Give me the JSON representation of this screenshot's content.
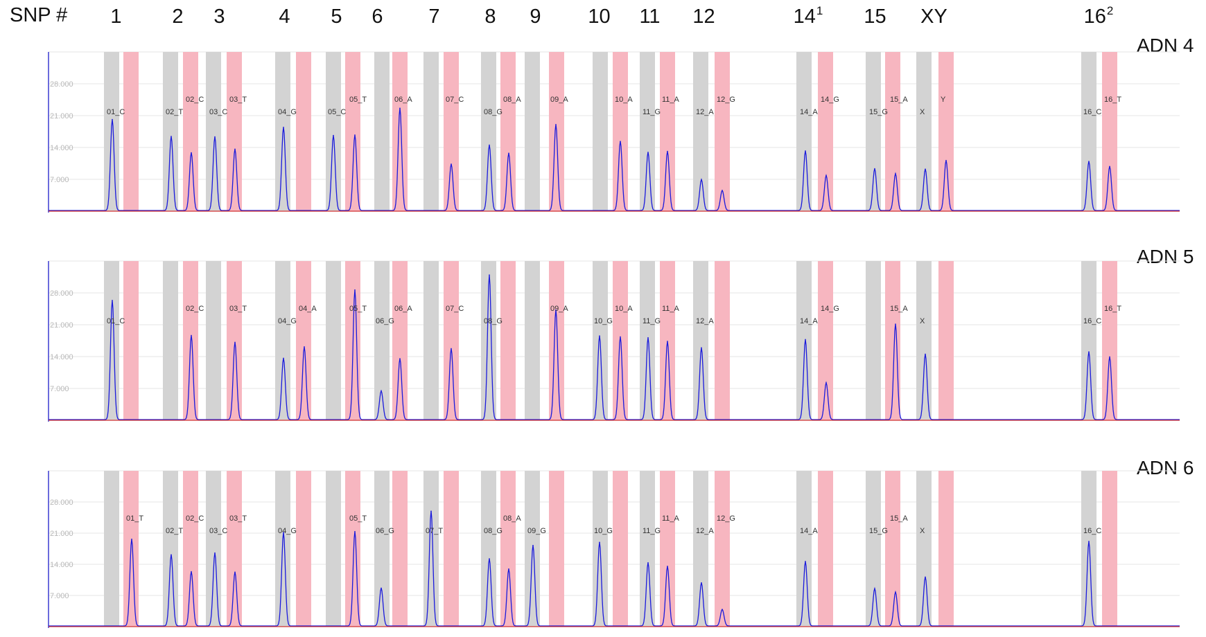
{
  "header": {
    "title": "SNP #",
    "snps": [
      {
        "label": "1",
        "sup": ""
      },
      {
        "label": "2",
        "sup": ""
      },
      {
        "label": "3",
        "sup": ""
      },
      {
        "label": "4",
        "sup": ""
      },
      {
        "label": "5",
        "sup": ""
      },
      {
        "label": "6",
        "sup": ""
      },
      {
        "label": "7",
        "sup": ""
      },
      {
        "label": "8",
        "sup": ""
      },
      {
        "label": "9",
        "sup": ""
      },
      {
        "label": "10",
        "sup": ""
      },
      {
        "label": "11",
        "sup": ""
      },
      {
        "label": "12",
        "sup": ""
      },
      {
        "label": "14",
        "sup": "1"
      },
      {
        "label": "15",
        "sup": ""
      },
      {
        "label": "XY",
        "sup": ""
      },
      {
        "label": "16",
        "sup": "2"
      }
    ]
  },
  "colors": {
    "allele1_bin": "#d3d3d3",
    "allele2_bin": "#f7b6c0",
    "trace": "#1a1adc",
    "baseline": "#d03030",
    "grid": "#e6e6e6",
    "axis": "#3a3ad0"
  },
  "chart_data": [
    {
      "type": "line",
      "title": "ADN 4",
      "y_ticks": [
        "7.000",
        "14.000",
        "21.000",
        "28.000"
      ],
      "ylim": [
        0,
        35000
      ],
      "peaks": [
        {
          "snp": "1",
          "label": "01_C",
          "allele": 1,
          "height": 20000
        },
        {
          "snp": "2",
          "label": "02_T",
          "allele": 1,
          "height": 16300
        },
        {
          "snp": "2",
          "label": "02_C",
          "allele": 2,
          "height": 12700
        },
        {
          "snp": "3",
          "label": "03_C",
          "allele": 1,
          "height": 16200
        },
        {
          "snp": "3",
          "label": "03_T",
          "allele": 2,
          "height": 13500
        },
        {
          "snp": "4",
          "label": "04_G",
          "allele": 1,
          "height": 18300
        },
        {
          "snp": "5",
          "label": "05_C",
          "allele": 1,
          "height": 16500
        },
        {
          "snp": "5",
          "label": "05_T",
          "allele": 2,
          "height": 16600
        },
        {
          "snp": "6",
          "label": "06_A",
          "allele": 2,
          "height": 22500
        },
        {
          "snp": "7",
          "label": "07_C",
          "allele": 2,
          "height": 10200
        },
        {
          "snp": "8",
          "label": "08_G",
          "allele": 1,
          "height": 14400
        },
        {
          "snp": "8",
          "label": "08_A",
          "allele": 2,
          "height": 12600
        },
        {
          "snp": "9",
          "label": "09_A",
          "allele": 2,
          "height": 18900
        },
        {
          "snp": "10",
          "label": "10_A",
          "allele": 2,
          "height": 15200
        },
        {
          "snp": "11",
          "label": "11_G",
          "allele": 1,
          "height": 12800
        },
        {
          "snp": "11",
          "label": "11_A",
          "allele": 2,
          "height": 13000
        },
        {
          "snp": "12",
          "label": "12_A",
          "allele": 1,
          "height": 6800
        },
        {
          "snp": "12",
          "label": "12_G",
          "allele": 2,
          "height": 4400
        },
        {
          "snp": "14",
          "label": "14_A",
          "allele": 1,
          "height": 13100
        },
        {
          "snp": "14",
          "label": "14_G",
          "allele": 2,
          "height": 7700
        },
        {
          "snp": "15",
          "label": "15_G",
          "allele": 1,
          "height": 9200
        },
        {
          "snp": "15",
          "label": "15_A",
          "allele": 2,
          "height": 8100
        },
        {
          "snp": "XY",
          "label": "X",
          "allele": 1,
          "height": 9100
        },
        {
          "snp": "XY",
          "label": "Y",
          "allele": 2,
          "height": 11000
        },
        {
          "snp": "16",
          "label": "16_C",
          "allele": 1,
          "height": 10800
        },
        {
          "snp": "16",
          "label": "16_T",
          "allele": 2,
          "height": 9700
        }
      ]
    },
    {
      "type": "line",
      "title": "ADN 5",
      "y_ticks": [
        "7.000",
        "14.000",
        "21.000",
        "28.000"
      ],
      "ylim": [
        0,
        35000
      ],
      "peaks": [
        {
          "snp": "1",
          "label": "01_C",
          "allele": 1,
          "height": 26200
        },
        {
          "snp": "2",
          "label": "02_C",
          "allele": 2,
          "height": 18500
        },
        {
          "snp": "3",
          "label": "03_T",
          "allele": 2,
          "height": 17000
        },
        {
          "snp": "4",
          "label": "04_G",
          "allele": 1,
          "height": 13500
        },
        {
          "snp": "4",
          "label": "04_A",
          "allele": 2,
          "height": 16000
        },
        {
          "snp": "5",
          "label": "05_T",
          "allele": 2,
          "height": 28500
        },
        {
          "snp": "6",
          "label": "06_G",
          "allele": 1,
          "height": 6300
        },
        {
          "snp": "6",
          "label": "06_A",
          "allele": 2,
          "height": 13400
        },
        {
          "snp": "7",
          "label": "07_C",
          "allele": 2,
          "height": 15600
        },
        {
          "snp": "8",
          "label": "08_G",
          "allele": 1,
          "height": 31800
        },
        {
          "snp": "9",
          "label": "09_A",
          "allele": 2,
          "height": 24100
        },
        {
          "snp": "10",
          "label": "10_G",
          "allele": 1,
          "height": 18400
        },
        {
          "snp": "10",
          "label": "10_A",
          "allele": 2,
          "height": 18200
        },
        {
          "snp": "11",
          "label": "11_G",
          "allele": 1,
          "height": 18000
        },
        {
          "snp": "11",
          "label": "11_A",
          "allele": 2,
          "height": 17200
        },
        {
          "snp": "12",
          "label": "12_A",
          "allele": 1,
          "height": 15800
        },
        {
          "snp": "14",
          "label": "14_A",
          "allele": 1,
          "height": 17600
        },
        {
          "snp": "14",
          "label": "14_G",
          "allele": 2,
          "height": 8100
        },
        {
          "snp": "15",
          "label": "15_A",
          "allele": 2,
          "height": 21000
        },
        {
          "snp": "XY",
          "label": "X",
          "allele": 1,
          "height": 14400
        },
        {
          "snp": "16",
          "label": "16_C",
          "allele": 1,
          "height": 14900
        },
        {
          "snp": "16",
          "label": "16_T",
          "allele": 2,
          "height": 13800
        }
      ]
    },
    {
      "type": "line",
      "title": "ADN 6",
      "y_ticks": [
        "7.000",
        "14.000",
        "21.000",
        "28.000"
      ],
      "ylim": [
        0,
        35000
      ],
      "peaks": [
        {
          "snp": "1",
          "label": "01_T",
          "allele": 2,
          "height": 19500
        },
        {
          "snp": "2",
          "label": "02_T",
          "allele": 1,
          "height": 16000
        },
        {
          "snp": "2",
          "label": "02_C",
          "allele": 2,
          "height": 12200
        },
        {
          "snp": "3",
          "label": "03_C",
          "allele": 1,
          "height": 16400
        },
        {
          "snp": "3",
          "label": "03_T",
          "allele": 2,
          "height": 12100
        },
        {
          "snp": "4",
          "label": "04_G",
          "allele": 1,
          "height": 21000
        },
        {
          "snp": "5",
          "label": "05_T",
          "allele": 2,
          "height": 21200
        },
        {
          "snp": "6",
          "label": "06_G",
          "allele": 1,
          "height": 8500
        },
        {
          "snp": "7",
          "label": "07_T",
          "allele": 1,
          "height": 25800
        },
        {
          "snp": "8",
          "label": "08_G",
          "allele": 1,
          "height": 15100
        },
        {
          "snp": "8",
          "label": "08_A",
          "allele": 2,
          "height": 12800
        },
        {
          "snp": "9",
          "label": "09_G",
          "allele": 1,
          "height": 18100
        },
        {
          "snp": "10",
          "label": "10_G",
          "allele": 1,
          "height": 18800
        },
        {
          "snp": "11",
          "label": "11_G",
          "allele": 1,
          "height": 14200
        },
        {
          "snp": "11",
          "label": "11_A",
          "allele": 2,
          "height": 13400
        },
        {
          "snp": "12",
          "label": "12_A",
          "allele": 1,
          "height": 9700
        },
        {
          "snp": "12",
          "label": "12_G",
          "allele": 2,
          "height": 3700
        },
        {
          "snp": "14",
          "label": "14_A",
          "allele": 1,
          "height": 14500
        },
        {
          "snp": "15",
          "label": "15_G",
          "allele": 1,
          "height": 8400
        },
        {
          "snp": "15",
          "label": "15_A",
          "allele": 2,
          "height": 7600
        },
        {
          "snp": "XY",
          "label": "X",
          "allele": 1,
          "height": 11000
        },
        {
          "snp": "16",
          "label": "16_C",
          "allele": 1,
          "height": 19000
        }
      ]
    }
  ]
}
